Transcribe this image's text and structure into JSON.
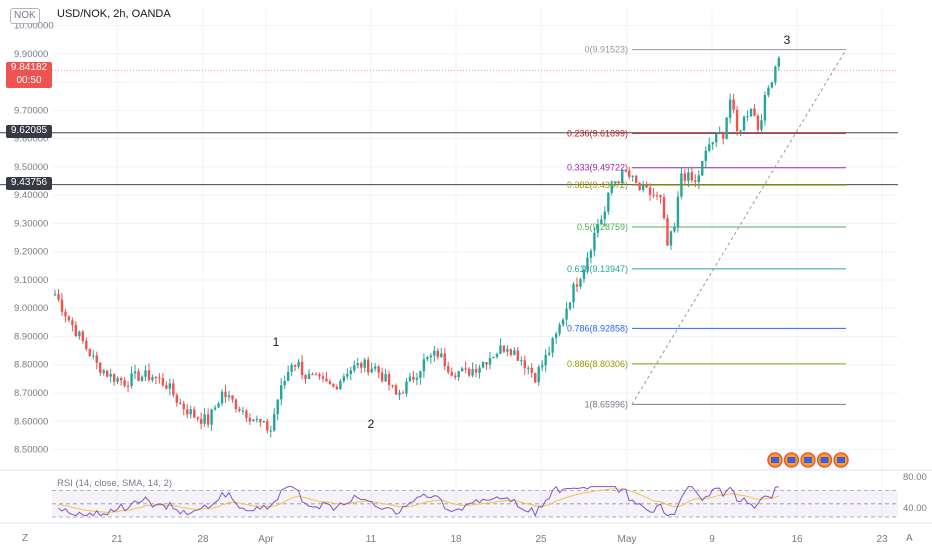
{
  "header": {
    "symbol_badge": "NOK",
    "title": "USD/NOK, 2h, OANDA"
  },
  "price_tags": {
    "current_price": "9.84182",
    "countdown": "00:50",
    "level_1": "9.62085",
    "level_2": "9.43756"
  },
  "wave_labels": [
    "1",
    "2",
    "3"
  ],
  "rsi": {
    "label": "RSI (14, close, SMA, 14, 2)",
    "axis_ticks": [
      "80.00",
      "40.00"
    ]
  },
  "corner_buttons": {
    "left": "Z",
    "right": "A"
  },
  "colors": {
    "up": "#26a69a",
    "down": "#ef5350",
    "rsi_line": "#7e57c2",
    "rsi_ma": "#f5c542",
    "current_price": "#ef5350"
  },
  "chart_data": {
    "type": "candlestick",
    "yticks": [
      10.0,
      9.9,
      9.8,
      9.7,
      9.6,
      9.5,
      9.4,
      9.3,
      9.2,
      9.1,
      9.0,
      8.9,
      8.8,
      8.7,
      8.6,
      8.5
    ],
    "ytick_labels": [
      "10.00000",
      "9.90000",
      "9.80000",
      "9.70000",
      "9.60000",
      "9.50000",
      "9.40000",
      "9.30000",
      "9.20000",
      "9.10000",
      "9.00000",
      "8.90000",
      "8.80000",
      "8.70000",
      "8.60000",
      "8.50000"
    ],
    "ylim": [
      8.47,
      10.02
    ],
    "xticks": [
      "21",
      "28",
      "Apr",
      "11",
      "18",
      "25",
      "May",
      "9",
      "16",
      "23"
    ],
    "horizontal_levels": [
      9.62085,
      9.43756
    ],
    "fibonacci": [
      {
        "ratio": "0",
        "price": 9.91523,
        "label": "0(9.91523)",
        "color": "#9598a1"
      },
      {
        "ratio": "0.236",
        "price": 9.61899,
        "label": "0.236(9.61899)",
        "color": "#b71c1c"
      },
      {
        "ratio": "0.333",
        "price": 9.49722,
        "label": "0.333(9.49722)",
        "color": "#9c27b0"
      },
      {
        "ratio": "0.382",
        "price": 9.43572,
        "label": "0.382(9.43572)",
        "color": "#9c9a00"
      },
      {
        "ratio": "0.5",
        "price": 9.2876,
        "label": "0.5(9.28759)",
        "color": "#4caf50"
      },
      {
        "ratio": "0.618",
        "price": 9.13947,
        "label": "0.618(9.13947)",
        "color": "#26a69a"
      },
      {
        "ratio": "0.786",
        "price": 8.92858,
        "label": "0.786(8.92858)",
        "color": "#2962ff"
      },
      {
        "ratio": "0.886",
        "price": 8.80306,
        "label": "0.886(8.80306)",
        "color": "#9c9a00"
      },
      {
        "ratio": "1",
        "price": 8.65996,
        "label": "1(8.65996)",
        "color": "#787b86"
      }
    ],
    "anchor_path": [
      [
        0,
        9.05
      ],
      [
        4,
        8.96
      ],
      [
        8,
        8.88
      ],
      [
        12,
        8.8
      ],
      [
        16,
        8.76
      ],
      [
        20,
        8.74
      ],
      [
        24,
        8.76
      ],
      [
        28,
        8.76
      ],
      [
        32,
        8.73
      ],
      [
        36,
        8.66
      ],
      [
        40,
        8.62
      ],
      [
        44,
        8.6
      ],
      [
        48,
        8.7
      ],
      [
        52,
        8.66
      ],
      [
        56,
        8.62
      ],
      [
        60,
        8.58
      ],
      [
        62,
        8.57
      ],
      [
        64,
        8.68
      ],
      [
        68,
        8.81
      ],
      [
        70,
        8.8
      ],
      [
        72,
        8.76
      ],
      [
        76,
        8.74
      ],
      [
        80,
        8.72
      ],
      [
        84,
        8.78
      ],
      [
        88,
        8.8
      ],
      [
        92,
        8.79
      ],
      [
        96,
        8.73
      ],
      [
        98,
        8.69
      ],
      [
        102,
        8.74
      ],
      [
        106,
        8.81
      ],
      [
        110,
        8.84
      ],
      [
        114,
        8.78
      ],
      [
        118,
        8.77
      ],
      [
        122,
        8.8
      ],
      [
        126,
        8.84
      ],
      [
        130,
        8.87
      ],
      [
        134,
        8.82
      ],
      [
        138,
        8.76
      ],
      [
        140,
        8.8
      ],
      [
        144,
        8.9
      ],
      [
        148,
        9.04
      ],
      [
        152,
        9.15
      ],
      [
        156,
        9.3
      ],
      [
        158,
        9.34
      ],
      [
        160,
        9.44
      ],
      [
        164,
        9.48
      ],
      [
        168,
        9.42
      ],
      [
        172,
        9.4
      ],
      [
        174,
        9.38
      ],
      [
        176,
        9.22
      ],
      [
        178,
        9.28
      ],
      [
        180,
        9.48
      ],
      [
        184,
        9.44
      ],
      [
        188,
        9.58
      ],
      [
        192,
        9.62
      ],
      [
        194,
        9.74
      ],
      [
        196,
        9.62
      ],
      [
        200,
        9.72
      ],
      [
        202,
        9.64
      ],
      [
        205,
        9.78
      ],
      [
        208,
        9.9
      ]
    ],
    "rsi_ylim": [
      30,
      80
    ],
    "rsi_levels": [
      70,
      50,
      30
    ]
  }
}
